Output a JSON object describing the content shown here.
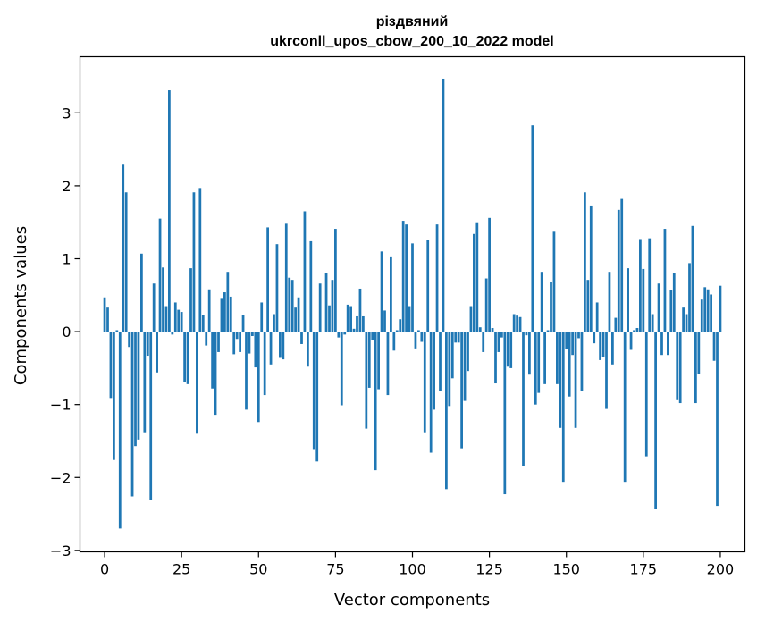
{
  "chart_data": {
    "type": "bar",
    "title": "різдвяний",
    "subtitle": "ukrconll_upos_cbow_200_10_2022 model",
    "xlabel": "Vector components",
    "ylabel": "Components values",
    "xlim": [
      -8,
      208
    ],
    "ylim": [
      -3.02,
      3.77
    ],
    "xticks": [
      0,
      25,
      50,
      75,
      100,
      125,
      150,
      175,
      200
    ],
    "yticks": [
      -3,
      -2,
      -1,
      0,
      1,
      2,
      3
    ],
    "xtick_labels": [
      "0",
      "25",
      "50",
      "75",
      "100",
      "125",
      "150",
      "175",
      "200"
    ],
    "ytick_labels": [
      "−3",
      "−2",
      "−1",
      "0",
      "1",
      "2",
      "3"
    ],
    "grid": false,
    "bar_color": "#1f77b4",
    "values": [
      0.47,
      0.33,
      -0.91,
      -1.76,
      0.02,
      -2.7,
      2.29,
      1.91,
      -0.21,
      -2.26,
      -1.57,
      -1.48,
      1.07,
      -1.38,
      -0.33,
      -2.31,
      0.66,
      -0.56,
      1.55,
      0.88,
      0.35,
      3.31,
      -0.04,
      0.4,
      0.3,
      0.27,
      -0.69,
      -0.72,
      0.87,
      1.91,
      -1.4,
      1.97,
      0.23,
      -0.19,
      0.58,
      -0.78,
      -1.14,
      -0.28,
      0.45,
      0.54,
      0.82,
      0.48,
      -0.31,
      -0.1,
      -0.28,
      0.23,
      -1.07,
      -0.3,
      -0.06,
      -0.49,
      -1.24,
      0.4,
      -0.87,
      1.43,
      -0.45,
      0.24,
      1.2,
      -0.36,
      -0.38,
      1.48,
      0.74,
      0.71,
      0.33,
      0.47,
      -0.17,
      1.65,
      -0.48,
      1.24,
      -1.61,
      -1.78,
      0.66,
      0.0,
      0.81,
      0.36,
      0.71,
      1.41,
      -0.08,
      -1.01,
      -0.04,
      0.37,
      0.35,
      0.04,
      0.21,
      0.59,
      0.21,
      -1.33,
      -0.77,
      -0.11,
      -1.9,
      -0.79,
      1.1,
      0.29,
      -0.87,
      1.02,
      -0.26,
      0.02,
      0.17,
      1.52,
      1.47,
      0.35,
      1.21,
      -0.23,
      0.02,
      -0.14,
      -1.38,
      1.26,
      -1.66,
      -1.07,
      1.47,
      -0.82,
      3.47,
      -2.16,
      -1.02,
      -0.64,
      -0.15,
      -0.15,
      -1.6,
      -0.95,
      -0.54,
      0.35,
      1.34,
      1.5,
      0.06,
      -0.28,
      0.73,
      1.56,
      0.05,
      -0.71,
      -0.28,
      -0.08,
      -2.23,
      -0.48,
      -0.5,
      0.24,
      0.22,
      0.2,
      -1.84,
      -0.05,
      -0.59,
      2.83,
      -1.0,
      -0.84,
      0.82,
      -0.72,
      0.02,
      0.68,
      1.37,
      -0.72,
      -1.32,
      -2.06,
      -0.24,
      -0.89,
      -0.32,
      -1.32,
      -0.09,
      -0.81,
      1.91,
      0.71,
      1.73,
      -0.16,
      0.4,
      -0.39,
      -0.35,
      -1.06,
      0.82,
      -0.45,
      0.19,
      1.67,
      1.82,
      -2.06,
      0.87,
      -0.25,
      0.02,
      0.05,
      1.27,
      0.86,
      -1.71,
      1.28,
      0.24,
      -2.43,
      0.66,
      -0.32,
      1.41,
      -0.32,
      0.57,
      0.81,
      -0.94,
      -0.98,
      0.33,
      0.24,
      0.94,
      1.45,
      -0.98,
      -0.58,
      0.44,
      0.61,
      0.58,
      0.51,
      -0.4,
      -2.39,
      0.63
    ]
  }
}
